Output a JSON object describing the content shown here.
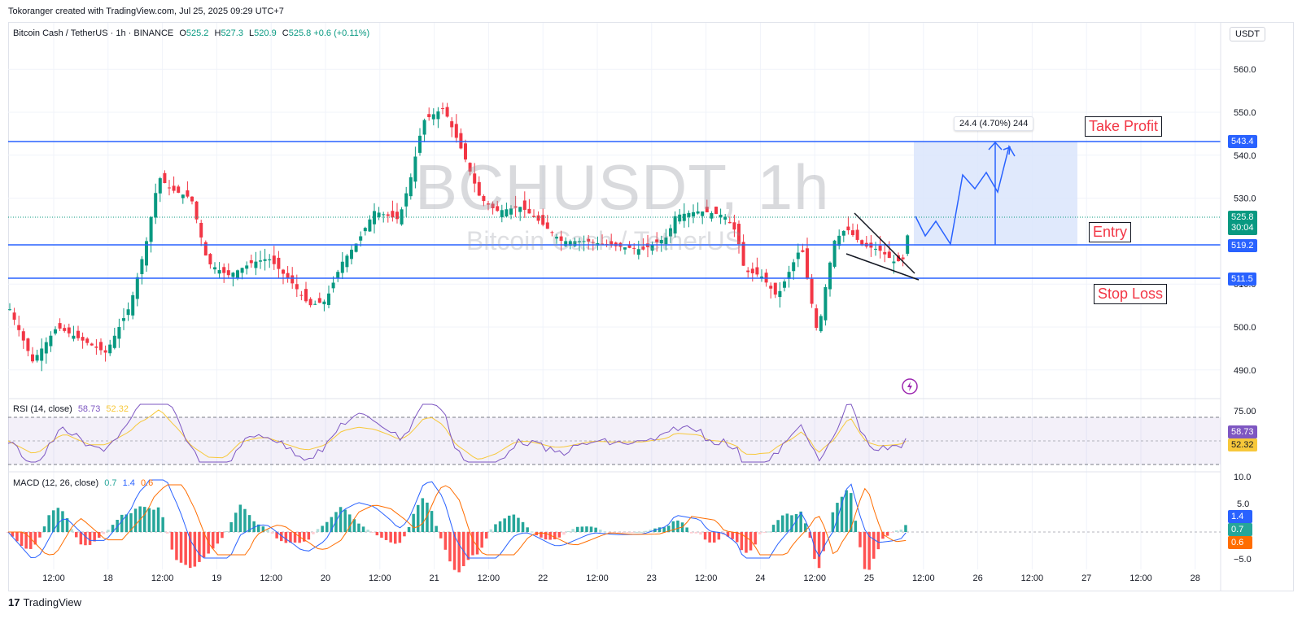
{
  "header": {
    "attribution": "Tokoranger created with TradingView.com, Jul 25, 2025 09:29 UTC+7"
  },
  "symbol": {
    "name": "Bitcoin Cash / TetherUS · 1h · BINANCE",
    "open_label": "O",
    "open": "525.2",
    "high_label": "H",
    "high": "527.3",
    "low_label": "L",
    "low": "520.9",
    "close_label": "C",
    "close": "525.8",
    "change": "+0.6 (+0.11%)"
  },
  "watermark": {
    "ticker": "BCHUSDT, 1h",
    "description": "Bitcoin Cash / TetherUS"
  },
  "currency": "USDT",
  "price_axis": {
    "ticks": [
      "560.0",
      "550.0",
      "540.0",
      "530.0",
      "510.0",
      "500.0",
      "490.0"
    ],
    "current_price": "525.8",
    "countdown": "30:04",
    "take_profit_price": "543.4",
    "entry_price": "519.2",
    "stop_loss_price": "511.5"
  },
  "annotations": {
    "take_profit": "Take Profit",
    "entry": "Entry",
    "stop_loss": "Stop Loss",
    "measure": "24.4 (4.70%) 244"
  },
  "rsi": {
    "title": "RSI (14, close)",
    "value": "58.73",
    "ma_value": "52.32",
    "axis_top": "75.00",
    "value_color": "#7e57c2",
    "ma_color": "#f7c83a"
  },
  "macd": {
    "title": "MACD (12, 26, close)",
    "hist": "0.7",
    "macd": "1.4",
    "signal": "0.6",
    "axis_top": "10.0",
    "axis_mid": "5.0",
    "axis_bottom": "−5.0",
    "macd_color": "#2962ff",
    "signal_color": "#ff6d00",
    "hist_color": "#26a69a"
  },
  "time_axis": [
    "12:00",
    "18",
    "12:00",
    "19",
    "12:00",
    "20",
    "12:00",
    "21",
    "12:00",
    "22",
    "12:00",
    "23",
    "12:00",
    "24",
    "12:00",
    "25",
    "12:00",
    "26",
    "12:00",
    "27",
    "12:00",
    "28"
  ],
  "footer": {
    "brand": "TradingView"
  },
  "colors": {
    "up": "#089981",
    "down": "#f23645",
    "level_line": "#2962ff",
    "target_zone": "#dbe5fb"
  }
}
